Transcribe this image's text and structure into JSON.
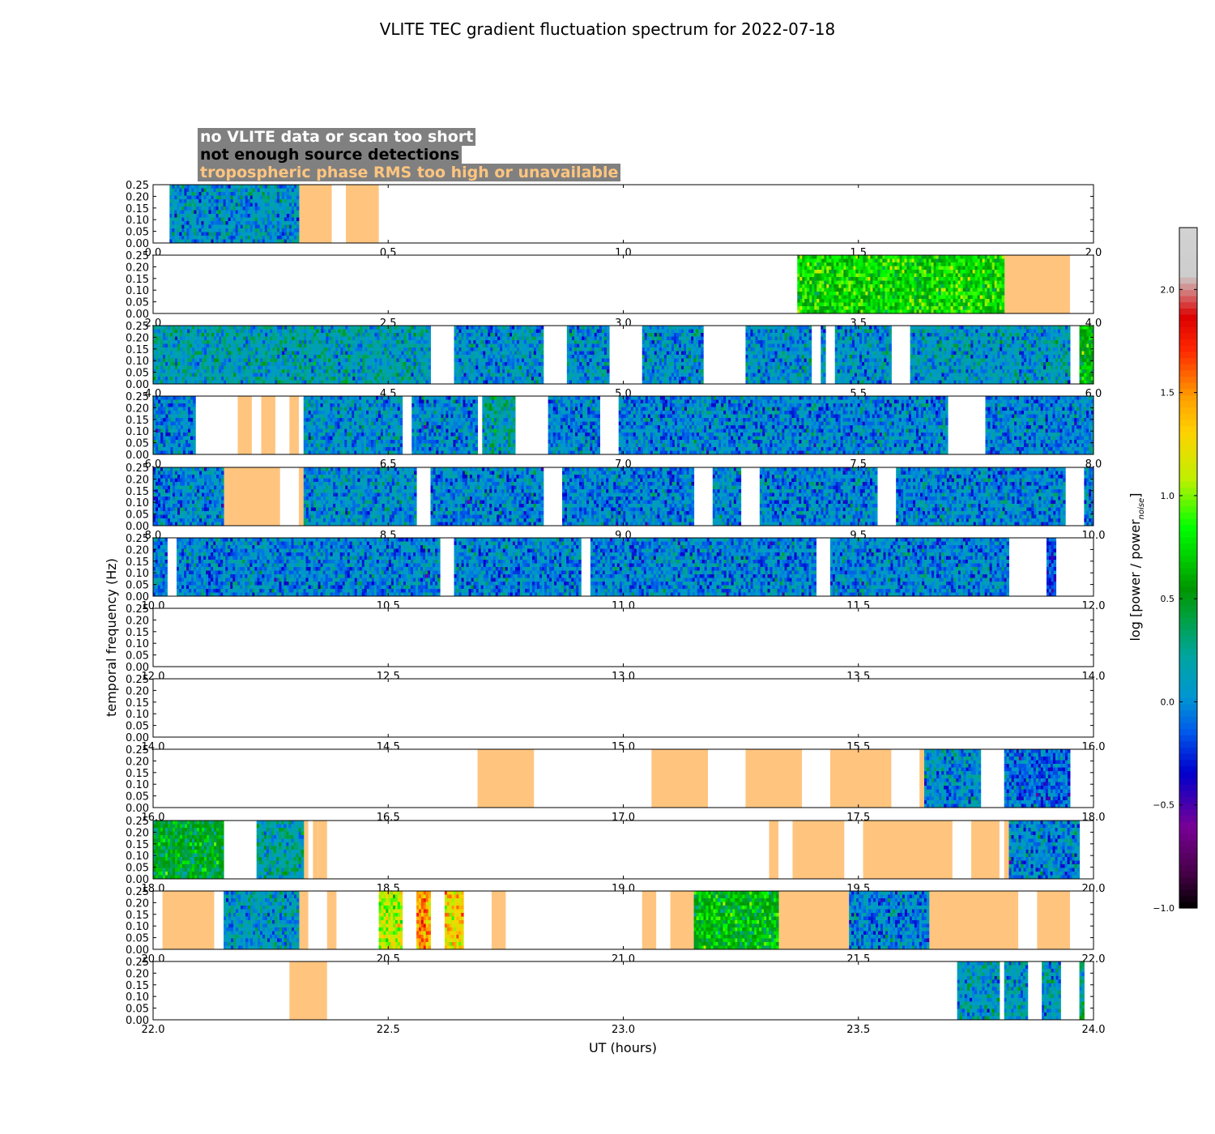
{
  "chart_data": {
    "type": "heatmap",
    "title": "VLITE TEC gradient fluctuation spectrum for 2022-07-18",
    "xlabel": "UT (hours)",
    "ylabel": "temporal frequency (Hz)",
    "ylim": [
      0,
      0.25
    ],
    "yticks": [
      "0.00",
      "0.05",
      "0.10",
      "0.15",
      "0.20",
      "0.25"
    ],
    "colorbar": {
      "label": "log [power / power",
      "label_sub": "noise",
      "label_end": "]",
      "range": [
        -1.0,
        2.3
      ],
      "ticks": [
        "−1.0",
        "−0.5",
        "0.0",
        "0.5",
        "1.0",
        "1.5",
        "2.0"
      ],
      "tick_values": [
        -1.0,
        -0.5,
        0.0,
        0.5,
        1.0,
        1.5,
        2.0
      ]
    },
    "legend": [
      {
        "label": "no VLITE data or scan too short",
        "color": "#ffffff"
      },
      {
        "label": "not enough source detections",
        "color": "#000000"
      },
      {
        "label": "tropospheric phase RMS too high or unavailable",
        "color": "#ffc57f"
      }
    ],
    "colors": {
      "flag": "#ffc57f",
      "legend_bg": "#808080"
    },
    "panels": [
      {
        "xlim": [
          0,
          2
        ],
        "xticks": [
          "0.0",
          "0.5",
          "1.0",
          "1.5",
          "2.0"
        ],
        "data": [
          [
            0.035,
            0.31,
            0.05
          ]
        ],
        "flagged": [
          [
            0.31,
            0.38
          ],
          [
            0.41,
            0.48
          ]
        ]
      },
      {
        "xlim": [
          2,
          4
        ],
        "xticks": [
          "2.0",
          "2.5",
          "3.0",
          "3.5",
          "4.0"
        ],
        "data": [
          [
            3.37,
            3.81,
            0.75
          ]
        ],
        "flagged": [
          [
            3.81,
            3.95
          ]
        ]
      },
      {
        "xlim": [
          4,
          6
        ],
        "xticks": [
          "4.0",
          "4.5",
          "5.0",
          "5.5",
          "6.0"
        ],
        "data": [
          [
            4.0,
            4.59,
            0.15
          ],
          [
            4.64,
            4.83,
            0.05
          ],
          [
            4.88,
            4.97,
            0.05
          ],
          [
            5.04,
            5.17,
            0.05
          ],
          [
            5.26,
            5.4,
            0.05
          ],
          [
            5.42,
            5.43,
            0.05
          ],
          [
            5.45,
            5.57,
            0.05
          ],
          [
            5.61,
            5.95,
            0.1
          ],
          [
            5.97,
            6.0,
            0.6
          ]
        ],
        "flagged": []
      },
      {
        "xlim": [
          6,
          8
        ],
        "xticks": [
          "6.0",
          "6.5",
          "7.0",
          "7.5",
          "8.0"
        ],
        "data": [
          [
            6.0,
            6.09,
            0.0
          ],
          [
            6.32,
            6.53,
            0.05
          ],
          [
            6.55,
            6.69,
            0.0
          ],
          [
            6.7,
            6.77,
            0.2
          ],
          [
            6.84,
            6.95,
            0.0
          ],
          [
            6.99,
            7.69,
            0.0
          ],
          [
            7.77,
            8.0,
            0.0
          ]
        ],
        "flagged": [
          [
            6.18,
            6.21
          ],
          [
            6.23,
            6.26
          ],
          [
            6.29,
            6.31
          ]
        ]
      },
      {
        "xlim": [
          8,
          10
        ],
        "xticks": [
          "8.0",
          "8.5",
          "9.0",
          "9.5",
          "10.0"
        ],
        "data": [
          [
            8.0,
            8.15,
            0.0
          ],
          [
            8.32,
            8.56,
            0.05
          ],
          [
            8.59,
            8.83,
            0.0
          ],
          [
            8.87,
            9.15,
            0.0
          ],
          [
            9.19,
            9.25,
            0.0
          ],
          [
            9.29,
            9.54,
            0.0
          ],
          [
            9.58,
            9.94,
            0.0
          ],
          [
            9.98,
            10.0,
            0.0
          ]
        ],
        "flagged": [
          [
            8.15,
            8.27
          ],
          [
            8.31,
            8.32
          ]
        ]
      },
      {
        "xlim": [
          10,
          12
        ],
        "xticks": [
          "10.0",
          "10.5",
          "11.0",
          "11.5",
          "12.0"
        ],
        "data": [
          [
            10.0,
            10.03,
            0.0
          ],
          [
            10.05,
            10.61,
            0.0
          ],
          [
            10.64,
            10.91,
            0.0
          ],
          [
            10.93,
            11.41,
            0.0
          ],
          [
            11.44,
            11.82,
            0.0
          ],
          [
            11.9,
            11.92,
            -0.2
          ]
        ],
        "flagged": []
      },
      {
        "xlim": [
          12,
          14
        ],
        "xticks": [
          "12.0",
          "12.5",
          "13.0",
          "13.5",
          "14.0"
        ],
        "data": [],
        "flagged": []
      },
      {
        "xlim": [
          14,
          16
        ],
        "xticks": [
          "14.0",
          "14.5",
          "15.0",
          "15.5",
          "16.0"
        ],
        "data": [],
        "flagged": []
      },
      {
        "xlim": [
          16,
          18
        ],
        "xticks": [
          "16.0",
          "16.5",
          "17.0",
          "17.5",
          "18.0"
        ],
        "data": [
          [
            17.64,
            17.76,
            0.05
          ],
          [
            17.81,
            17.95,
            -0.1
          ]
        ],
        "flagged": [
          [
            16.69,
            16.81
          ],
          [
            17.06,
            17.18
          ],
          [
            17.26,
            17.38
          ],
          [
            17.44,
            17.57
          ],
          [
            17.63,
            17.65
          ]
        ]
      },
      {
        "xlim": [
          18,
          20
        ],
        "xticks": [
          "18.0",
          "18.5",
          "19.0",
          "19.5",
          "20.0"
        ],
        "data": [
          [
            18.0,
            18.15,
            0.5
          ],
          [
            18.22,
            18.32,
            0.2
          ],
          [
            19.82,
            19.97,
            0.0
          ]
        ],
        "flagged": [
          [
            18.32,
            18.33
          ],
          [
            18.34,
            18.35
          ],
          [
            18.35,
            18.37
          ],
          [
            19.31,
            19.33
          ],
          [
            19.36,
            19.47
          ],
          [
            19.51,
            19.7
          ],
          [
            19.74,
            19.8
          ],
          [
            19.81,
            19.82
          ]
        ]
      },
      {
        "xlim": [
          20,
          22
        ],
        "xticks": [
          "20.0",
          "20.5",
          "21.0",
          "21.5",
          "22.0"
        ],
        "data": [
          [
            20.15,
            20.31,
            0.1
          ],
          [
            20.48,
            20.53,
            1.1
          ],
          [
            20.56,
            20.59,
            1.5
          ],
          [
            20.62,
            20.66,
            1.3
          ],
          [
            21.15,
            21.33,
            0.6
          ],
          [
            21.48,
            21.65,
            0.0
          ]
        ],
        "flagged": [
          [
            20.02,
            20.13
          ],
          [
            20.31,
            20.33
          ],
          [
            20.37,
            20.39
          ],
          [
            20.72,
            20.75
          ],
          [
            21.04,
            21.07
          ],
          [
            21.1,
            21.15
          ],
          [
            21.33,
            21.48
          ],
          [
            21.65,
            21.84
          ],
          [
            21.88,
            21.95
          ]
        ]
      },
      {
        "xlim": [
          22,
          24
        ],
        "xticks": [
          "22.0",
          "22.5",
          "23.0",
          "23.5",
          "24.0"
        ],
        "data": [
          [
            23.71,
            23.8,
            0.1
          ],
          [
            23.81,
            23.86,
            0.1
          ],
          [
            23.89,
            23.93,
            0.1
          ],
          [
            23.97,
            23.98,
            0.3
          ]
        ],
        "flagged": [
          [
            22.29,
            22.37
          ]
        ]
      }
    ]
  }
}
